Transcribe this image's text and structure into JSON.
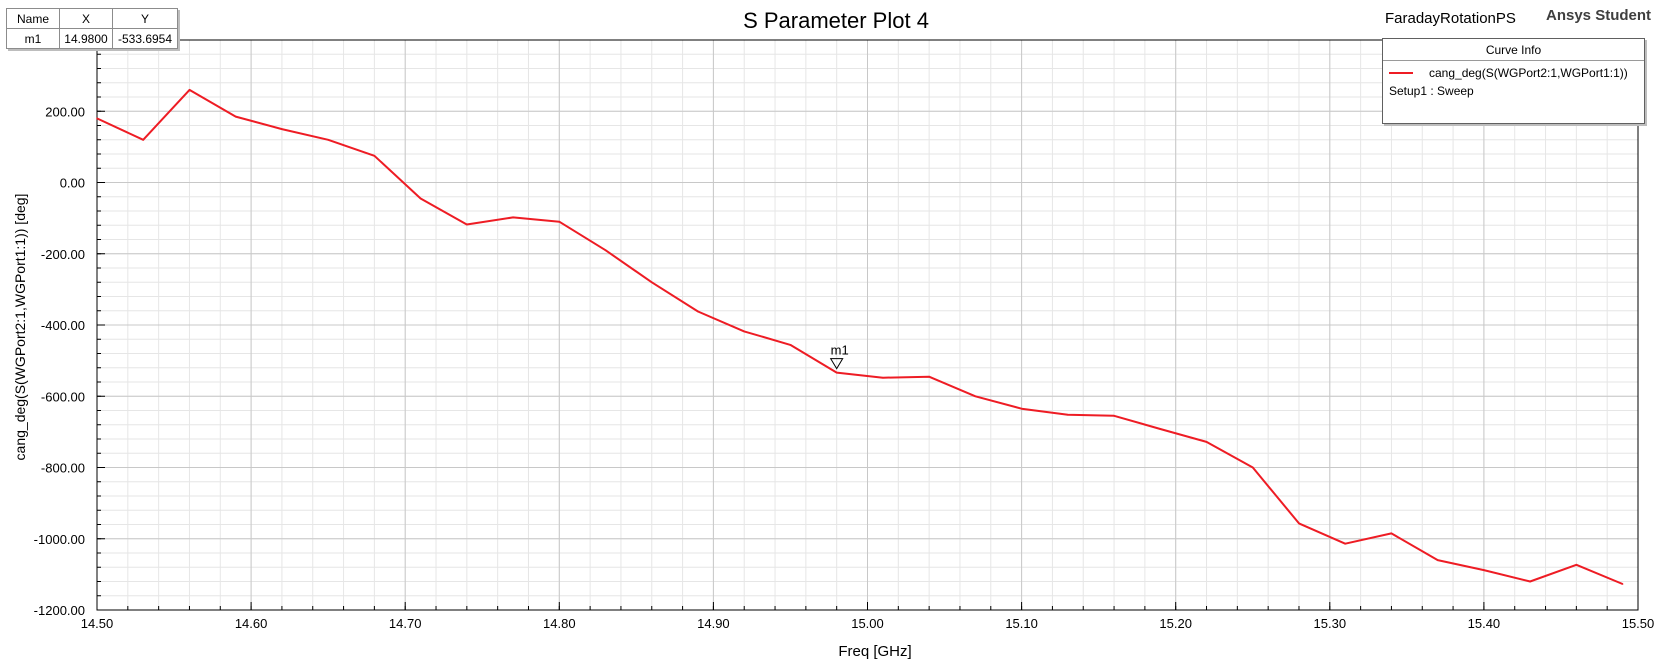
{
  "header": {
    "project_name": "FaradayRotationPS",
    "brand": "Ansys Student"
  },
  "marker_table": {
    "headers": [
      "Name",
      "X",
      "Y"
    ],
    "rows": [
      [
        "m1",
        "14.9800",
        "-533.6954"
      ]
    ]
  },
  "curve_info": {
    "title": "Curve Info",
    "curve_label": "cang_deg(S(WGPort2:1,WGPort1:1))",
    "setup_label": "Setup1 : Sweep"
  },
  "chart_data": {
    "type": "line",
    "title": "S Parameter Plot 4",
    "xlabel": "Freq [GHz]",
    "ylabel": "cang_deg(S(WGPort2:1,WGPort1:1)) [deg]",
    "xlim": [
      14.5,
      15.5
    ],
    "ylim": [
      -1200,
      400
    ],
    "x_ticks": [
      14.5,
      14.6,
      14.7,
      14.8,
      14.9,
      15.0,
      15.1,
      15.2,
      15.3,
      15.4,
      15.5
    ],
    "x_tick_labels": [
      "14.50",
      "14.60",
      "14.70",
      "14.80",
      "14.90",
      "15.00",
      "15.10",
      "15.20",
      "15.30",
      "15.40",
      "15.50"
    ],
    "y_ticks": [
      -1200,
      -1000,
      -800,
      -600,
      -400,
      -200,
      0,
      200
    ],
    "y_tick_labels": [
      "-1200.00",
      "-1000.00",
      "-800.00",
      "-600.00",
      "-400.00",
      "-200.00",
      "0.00",
      "200.00"
    ],
    "grid": true,
    "colors": {
      "series": "#ee1c24",
      "grid_major": "#c8c8c8",
      "grid_minor": "#e6e6e6"
    },
    "series": [
      {
        "name": "cang_deg(S(WGPort2:1,WGPort1:1))",
        "x": [
          14.5,
          14.53,
          14.56,
          14.59,
          14.62,
          14.65,
          14.68,
          14.71,
          14.74,
          14.77,
          14.8,
          14.83,
          14.86,
          14.89,
          14.92,
          14.95,
          14.98,
          15.01,
          15.04,
          15.07,
          15.1,
          15.13,
          15.16,
          15.19,
          15.22,
          15.25,
          15.28,
          15.31,
          15.34,
          15.37,
          15.4,
          15.43,
          15.46,
          15.49
        ],
        "y": [
          180,
          120,
          260,
          185,
          150,
          120,
          75,
          -45,
          -118,
          -98,
          -110,
          -190,
          -280,
          -362,
          -418,
          -456,
          -533.7,
          -548,
          -545,
          -600,
          -635,
          -652,
          -655,
          -692,
          -728,
          -800,
          -957,
          -1014,
          -985,
          -1060,
          -1088,
          -1120,
          -1073,
          -1127
        ]
      }
    ],
    "markers": [
      {
        "name": "m1",
        "x": 14.98,
        "y": -533.6954
      }
    ]
  }
}
